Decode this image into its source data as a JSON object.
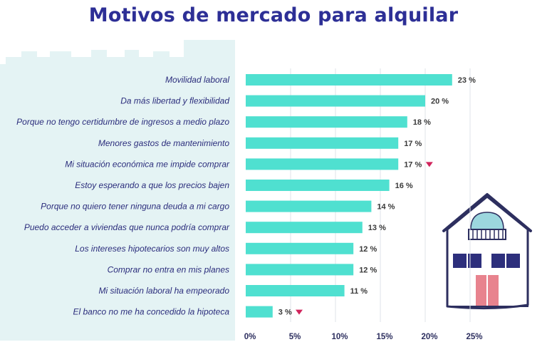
{
  "title": "Motivos de mercado para alquilar",
  "colors": {
    "bar": "#4fe0d0",
    "title": "#2d2f96",
    "skyline": "#e4f3f4",
    "grid": "#dfe3e8",
    "down_marker": "#d1245c"
  },
  "chart_data": {
    "type": "bar",
    "orientation": "horizontal",
    "title": "Motivos de mercado para alquilar",
    "xlabel": "",
    "ylabel": "",
    "xlim": [
      0,
      25
    ],
    "x_ticks": [
      "0%",
      "5%",
      "10%",
      "15%",
      "20%",
      "25%"
    ],
    "x_tick_values": [
      0,
      5,
      10,
      15,
      20,
      25
    ],
    "grid": true,
    "categories": [
      "Movilidad laboral",
      "Da más libertad y flexibilidad",
      "Porque no tengo certidumbre de ingresos a medio plazo",
      "Menores gastos de mantenimiento",
      "Mi situación económica me impide comprar",
      "Estoy esperando a que los precios bajen",
      "Porque no quiero tener ninguna deuda a mi cargo",
      "Puedo acceder a viviendas que nunca podría comprar",
      "Los intereses hipotecarios son muy altos",
      "Comprar no entra en mis planes",
      "Mi situación laboral ha empeorado",
      "El banco no me ha concedido la hipoteca"
    ],
    "values": [
      23,
      20,
      18,
      17,
      17,
      16,
      14,
      13,
      12,
      12,
      11,
      3
    ],
    "value_labels": [
      "23 %",
      "20 %",
      "18 %",
      "17 %",
      "17 %",
      "16 %",
      "14 %",
      "13 %",
      "12 %",
      "12 %",
      "11 %",
      "3 %"
    ],
    "down_markers": [
      false,
      false,
      false,
      false,
      true,
      false,
      false,
      false,
      false,
      false,
      false,
      true
    ]
  }
}
